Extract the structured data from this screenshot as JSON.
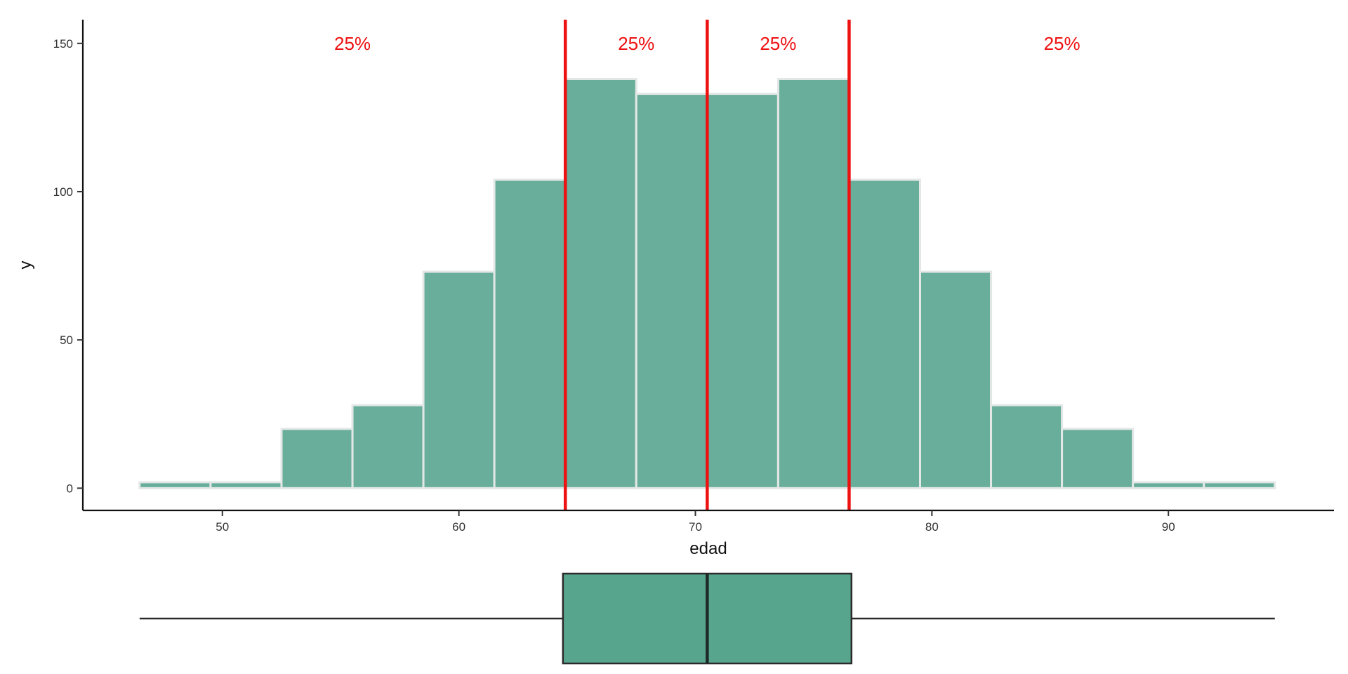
{
  "chart_data": [
    {
      "type": "histogram",
      "xlabel": "edad",
      "ylabel": "y",
      "xlim": [
        44.1,
        97.0
      ],
      "ylim": [
        -7.5,
        158
      ],
      "x_ticks": [
        50,
        60,
        70,
        80,
        90
      ],
      "y_ticks": [
        0,
        50,
        100,
        150
      ],
      "grid": false,
      "bin_width": 3,
      "bins": [
        {
          "x0": 46.5,
          "x1": 49.5,
          "count": 2
        },
        {
          "x0": 49.5,
          "x1": 52.5,
          "count": 2
        },
        {
          "x0": 52.5,
          "x1": 55.5,
          "count": 20
        },
        {
          "x0": 55.5,
          "x1": 58.5,
          "count": 28
        },
        {
          "x0": 58.5,
          "x1": 61.5,
          "count": 73
        },
        {
          "x0": 61.5,
          "x1": 64.5,
          "count": 104
        },
        {
          "x0": 64.5,
          "x1": 67.5,
          "count": 138
        },
        {
          "x0": 67.5,
          "x1": 70.5,
          "count": 133
        },
        {
          "x0": 70.5,
          "x1": 73.5,
          "count": 133
        },
        {
          "x0": 73.5,
          "x1": 76.5,
          "count": 138
        },
        {
          "x0": 76.5,
          "x1": 79.5,
          "count": 104
        },
        {
          "x0": 79.5,
          "x1": 82.5,
          "count": 73
        },
        {
          "x0": 82.5,
          "x1": 85.5,
          "count": 28
        },
        {
          "x0": 85.5,
          "x1": 88.5,
          "count": 20
        },
        {
          "x0": 88.5,
          "x1": 91.5,
          "count": 2
        },
        {
          "x0": 91.5,
          "x1": 94.5,
          "count": 2
        }
      ],
      "quartile_lines": [
        64.5,
        70.5,
        76.5
      ],
      "quartile_labels": [
        {
          "x": 55.5,
          "y": 150,
          "text": "25%"
        },
        {
          "x": 67.5,
          "y": 150,
          "text": "25%"
        },
        {
          "x": 73.5,
          "y": 150,
          "text": "25%"
        },
        {
          "x": 85.5,
          "y": 150,
          "text": "25%"
        }
      ],
      "colors": {
        "bar_fill": "#69ad9b",
        "bar_stroke": "#e3e8e6",
        "quartile": "#ee1111",
        "axis": "#111111"
      }
    },
    {
      "type": "boxplot",
      "min": 46.5,
      "q1": 64.4,
      "median": 70.5,
      "q3": 76.6,
      "max": 94.5,
      "colors": {
        "box_fill": "#58a58d",
        "line": "#2b2b2b"
      }
    }
  ]
}
